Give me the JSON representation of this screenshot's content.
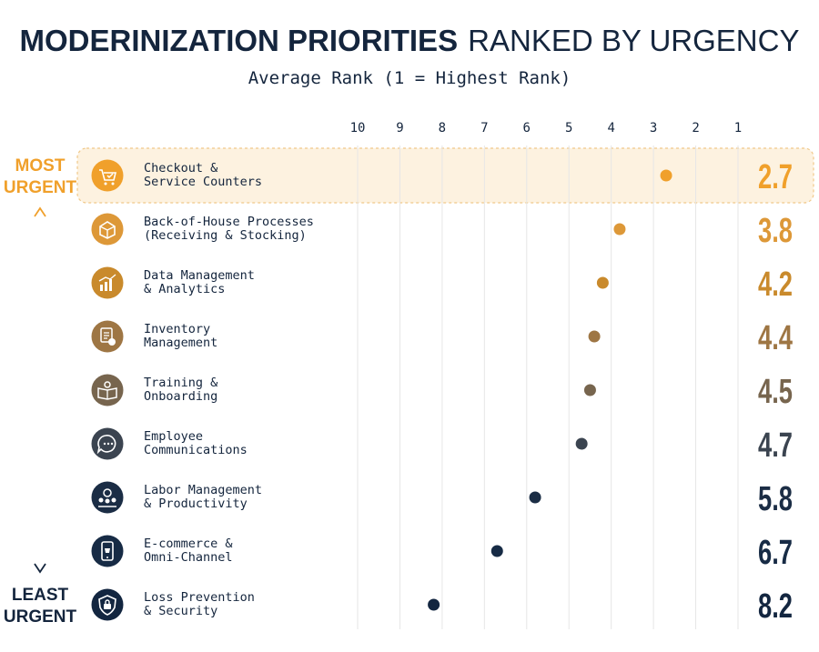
{
  "title": {
    "bold": "MODERINIZATION PRIORITIES",
    "light": "RANKED BY URGENCY"
  },
  "subtitle": "Average Rank (1 = Highest Rank)",
  "urgency_labels": {
    "top_line1": "MOST",
    "top_line2": "URGENT",
    "bottom_line1": "LEAST",
    "bottom_line2": "URGENT"
  },
  "colors": {
    "title": "#14253d",
    "highlight_bg": "#fdf2e0",
    "highlight_border": "#f0c889",
    "grid": "#e6e6e6",
    "text": "#14253d"
  },
  "chart_data": {
    "type": "lollipop",
    "axis": {
      "ticks": [
        10,
        9,
        8,
        7,
        6,
        5,
        4,
        3,
        2,
        1
      ],
      "range": [
        10,
        1
      ],
      "reversed": true,
      "grid": true
    },
    "rows": [
      {
        "label_line1": "Checkout &",
        "label_line2": "Service Counters",
        "value": 2.7,
        "value_label": "2.7",
        "color": "#f0a02b",
        "icon": "shopping-cart-check-icon",
        "highlight": true
      },
      {
        "label_line1": "Back-of-House Processes",
        "label_line2": "(Receiving & Stocking)",
        "value": 3.8,
        "value_label": "3.8",
        "color": "#dd9838",
        "icon": "box-package-icon",
        "highlight": false
      },
      {
        "label_line1": "Data Management",
        "label_line2": "& Analytics",
        "value": 4.2,
        "value_label": "4.2",
        "color": "#c98a2c",
        "icon": "growth-chart-icon",
        "highlight": false
      },
      {
        "label_line1": "Inventory",
        "label_line2": "Management",
        "value": 4.4,
        "value_label": "4.4",
        "color": "#9e7644",
        "icon": "clipboard-inventory-icon",
        "highlight": false
      },
      {
        "label_line1": "Training &",
        "label_line2": "Onboarding",
        "value": 4.5,
        "value_label": "4.5",
        "color": "#77654e",
        "icon": "open-book-gear-icon",
        "highlight": false
      },
      {
        "label_line1": "Employee",
        "label_line2": "Communications",
        "value": 4.7,
        "value_label": "4.7",
        "color": "#3b4450",
        "icon": "chat-bubble-icon",
        "highlight": false
      },
      {
        "label_line1": "Labor Management",
        "label_line2": "& Productivity",
        "value": 5.8,
        "value_label": "5.8",
        "color": "#1b2d45",
        "icon": "team-gear-icon",
        "highlight": false
      },
      {
        "label_line1": "E-commerce &",
        "label_line2": "Omni-Channel",
        "value": 6.7,
        "value_label": "6.7",
        "color": "#172b45",
        "icon": "mobile-cart-icon",
        "highlight": false
      },
      {
        "label_line1": "Loss Prevention",
        "label_line2": "& Security",
        "value": 8.2,
        "value_label": "8.2",
        "color": "#132640",
        "icon": "shield-lock-icon",
        "highlight": false
      }
    ]
  }
}
